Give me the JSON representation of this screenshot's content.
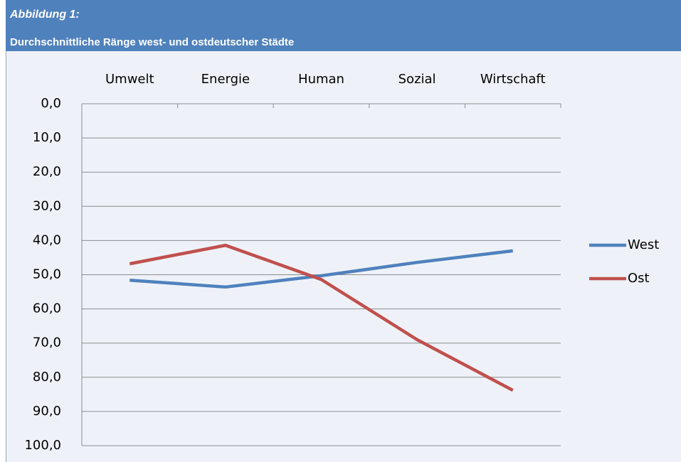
{
  "header": {
    "label": "Abbildung 1:",
    "title": "Durchschnittliche Ränge west- und ostdeutscher Städte"
  },
  "chart_data": {
    "type": "line",
    "categories": [
      "Umwelt",
      "Energie",
      "Human",
      "Sozial",
      "Wirtschaft"
    ],
    "series": [
      {
        "name": "West",
        "color": "#4f81bd",
        "values": [
          51.6,
          53.6,
          50.3,
          46.4,
          43.0
        ]
      },
      {
        "name": "Ost",
        "color": "#c0504d",
        "values": [
          46.8,
          41.4,
          51.4,
          69.0,
          83.8
        ]
      }
    ],
    "ylim": [
      0,
      100
    ],
    "y_reversed": true,
    "yticks": [
      {
        "value": 0,
        "label": "0,0"
      },
      {
        "value": 10,
        "label": "10,0"
      },
      {
        "value": 20,
        "label": "20,0"
      },
      {
        "value": 30,
        "label": "30,0"
      },
      {
        "value": 40,
        "label": "40,0"
      },
      {
        "value": 50,
        "label": "50,0"
      },
      {
        "value": 60,
        "label": "60,0"
      },
      {
        "value": 70,
        "label": "70,0"
      },
      {
        "value": 80,
        "label": "80,0"
      },
      {
        "value": 90,
        "label": "90,0"
      },
      {
        "value": 100,
        "label": "100,0"
      }
    ],
    "grid": true,
    "legend": "right"
  }
}
